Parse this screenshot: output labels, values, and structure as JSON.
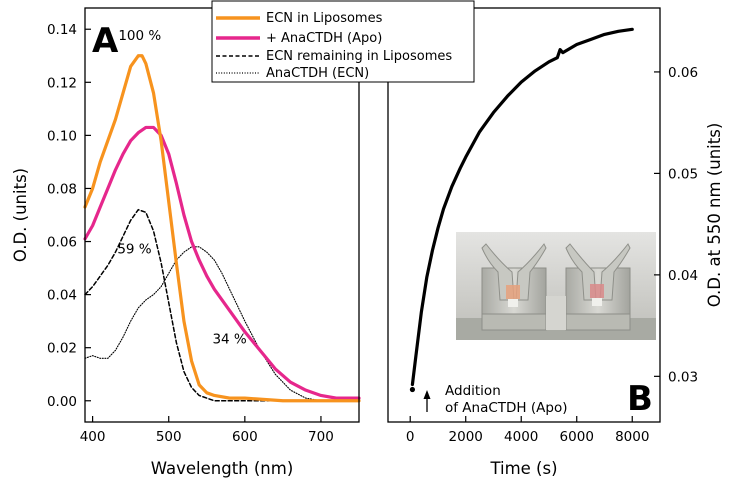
{
  "chart_data": [
    {
      "panel": "A",
      "type": "line",
      "xlabel": "Wavelength (nm)",
      "ylabel": "O.D. (units)",
      "xlim": [
        390,
        750
      ],
      "ylim": [
        -0.008,
        0.148
      ],
      "xticks": [
        400,
        500,
        600,
        700
      ],
      "xtick_labels": [
        "400",
        "500",
        "600",
        "700"
      ],
      "yticks": [
        0.0,
        0.02,
        0.04,
        0.06,
        0.08,
        0.1,
        0.12,
        0.14
      ],
      "ytick_labels": [
        "0.00",
        "0.02",
        "0.04",
        "0.06",
        "0.08",
        "0.10",
        "0.12",
        "0.14"
      ],
      "legend": {
        "placement": "top-center",
        "entries": [
          "ECN in Liposomes",
          "+ AnaCTDH (Apo)",
          "ECN remaining in Liposomes",
          "AnaCTDH (ECN)"
        ]
      },
      "series": [
        {
          "name": "ECN in Liposomes",
          "color": "#f7931e",
          "style": "solid",
          "x": [
            390,
            400,
            410,
            420,
            430,
            440,
            450,
            460,
            465,
            470,
            480,
            490,
            500,
            510,
            520,
            530,
            540,
            550,
            560,
            580,
            600,
            650,
            700,
            750
          ],
          "y": [
            0.073,
            0.08,
            0.09,
            0.098,
            0.106,
            0.116,
            0.126,
            0.13,
            0.13,
            0.127,
            0.116,
            0.098,
            0.075,
            0.052,
            0.03,
            0.015,
            0.006,
            0.003,
            0.002,
            0.001,
            0.001,
            0.0,
            0.0,
            0.0
          ]
        },
        {
          "name": "+ AnaCTDH (Apo)",
          "color": "#e6278c",
          "style": "solid",
          "x": [
            390,
            400,
            410,
            420,
            430,
            440,
            450,
            460,
            470,
            480,
            490,
            500,
            510,
            520,
            530,
            540,
            550,
            560,
            570,
            580,
            590,
            600,
            620,
            640,
            660,
            680,
            700,
            720,
            750
          ],
          "y": [
            0.061,
            0.066,
            0.073,
            0.08,
            0.087,
            0.093,
            0.098,
            0.101,
            0.103,
            0.103,
            0.1,
            0.093,
            0.082,
            0.07,
            0.06,
            0.053,
            0.047,
            0.042,
            0.038,
            0.034,
            0.03,
            0.026,
            0.019,
            0.012,
            0.007,
            0.004,
            0.002,
            0.001,
            0.001
          ]
        },
        {
          "name": "ECN remaining in Liposomes",
          "color": "#000000",
          "style": "dashed",
          "x": [
            390,
            400,
            410,
            420,
            430,
            440,
            450,
            460,
            470,
            480,
            490,
            500,
            510,
            520,
            530,
            540,
            550,
            560,
            580,
            600,
            650,
            700,
            750
          ],
          "y": [
            0.04,
            0.043,
            0.047,
            0.051,
            0.056,
            0.062,
            0.068,
            0.072,
            0.071,
            0.064,
            0.052,
            0.037,
            0.022,
            0.011,
            0.005,
            0.002,
            0.001,
            0.0,
            0.0,
            0.0,
            0.0,
            0.0,
            0.0
          ]
        },
        {
          "name": "AnaCTDH (ECN)",
          "color": "#000000",
          "style": "dotted",
          "x": [
            390,
            400,
            410,
            420,
            430,
            440,
            450,
            460,
            470,
            480,
            490,
            500,
            510,
            520,
            530,
            540,
            550,
            560,
            570,
            580,
            590,
            600,
            620,
            640,
            660,
            680,
            700,
            720,
            750
          ],
          "y": [
            0.016,
            0.017,
            0.016,
            0.016,
            0.019,
            0.024,
            0.03,
            0.035,
            0.038,
            0.04,
            0.043,
            0.048,
            0.053,
            0.056,
            0.058,
            0.058,
            0.056,
            0.053,
            0.048,
            0.042,
            0.036,
            0.03,
            0.019,
            0.01,
            0.004,
            0.001,
            0.0,
            0.0,
            0.0
          ]
        }
      ],
      "annotations": [
        {
          "text": "100 %",
          "x": 462,
          "y": 0.136
        },
        {
          "text": "59 %",
          "x": 455,
          "y": 0.0555
        },
        {
          "text": "34 %",
          "x": 580,
          "y": 0.0215
        }
      ]
    },
    {
      "panel": "B",
      "type": "line",
      "xlabel": "Time (s)",
      "ylabel": "O.D. at 550 nm (units)",
      "xlim": [
        -800,
        9000
      ],
      "ylim": [
        0.0255,
        0.0663
      ],
      "xticks": [
        0,
        2000,
        4000,
        6000,
        8000
      ],
      "xtick_labels": [
        "0",
        "2000",
        "4000",
        "6000",
        "8000"
      ],
      "yticks": [
        0.03,
        0.04,
        0.05,
        0.06
      ],
      "ytick_labels": [
        "0.03",
        "0.04",
        "0.05",
        "0.06"
      ],
      "y_axis_side": "right",
      "series": [
        {
          "name": "O.D. at 550 nm",
          "color": "#000000",
          "style": "solid",
          "x": [
            80,
            200,
            400,
            600,
            800,
            1000,
            1200,
            1500,
            1800,
            2000,
            2500,
            3000,
            3500,
            4000,
            4500,
            5000,
            5300,
            5400,
            5500,
            6000,
            6500,
            7000,
            7500,
            8000
          ],
          "y": [
            0.0292,
            0.0319,
            0.0363,
            0.0398,
            0.0424,
            0.0446,
            0.0465,
            0.0487,
            0.0505,
            0.0516,
            0.0541,
            0.056,
            0.0576,
            0.059,
            0.0601,
            0.061,
            0.0614,
            0.0622,
            0.0619,
            0.0627,
            0.0632,
            0.0637,
            0.064,
            0.0642
          ]
        }
      ],
      "marker_point": {
        "x": 80,
        "y": 0.0287
      },
      "annotation": {
        "line1": "Addition",
        "line2": "of AnaCTDH (Apo)"
      },
      "inset": "photo of two cuvettes with liposome suspensions"
    }
  ],
  "panel_labels": {
    "a": "A",
    "b": "B"
  }
}
